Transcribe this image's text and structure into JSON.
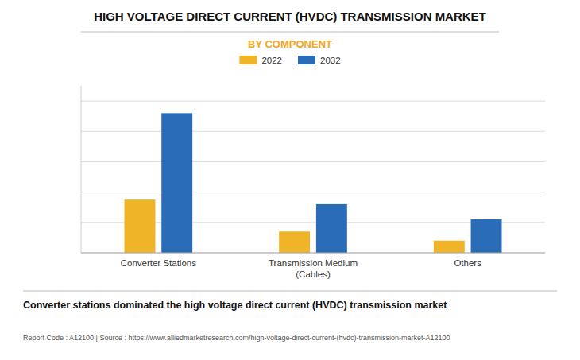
{
  "chart_data": {
    "type": "bar",
    "title": "HIGH VOLTAGE DIRECT CURRENT (HVDC) TRANSMISSION MARKET",
    "subtitle": "BY COMPONENT",
    "categories": [
      "Converter Stations",
      "Transmission Medium\n(Cables)",
      "Others"
    ],
    "series": [
      {
        "name": "2022",
        "color": "#F0B429",
        "values": [
          3.5,
          1.4,
          0.8
        ]
      },
      {
        "name": "2032",
        "color": "#2B6CB8",
        "values": [
          9.2,
          3.2,
          2.2
        ]
      }
    ],
    "ylim": [
      0,
      11
    ],
    "yticks": [
      0,
      2,
      4,
      6,
      8,
      10
    ],
    "grid": true,
    "legend": "top",
    "tick_labels": "x",
    "annotations": [
      "Converter stations dominated the high voltage direct current (HVDC) transmission market",
      "Report Code : A12100  |  Source : https://www.alliedmarketresearch.com/high-voltage-direct-current-(hvdc)-transmission-market-A12100"
    ]
  }
}
